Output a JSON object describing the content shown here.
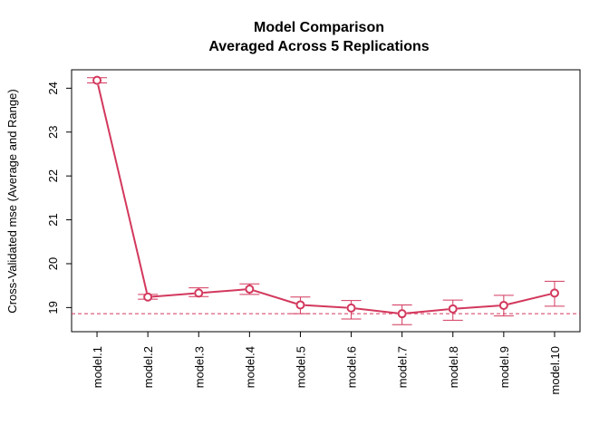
{
  "chart_data": {
    "type": "line",
    "title": "Model Comparison",
    "subtitle": "Averaged Across 5 Replications",
    "xlabel": "",
    "ylabel": "Cross-Validated mse (Average and Range)",
    "categories": [
      "model.1",
      "model.2",
      "model.3",
      "model.4",
      "model.5",
      "model.6",
      "model.7",
      "model.8",
      "model.9",
      "model.10"
    ],
    "series": [
      {
        "values": [
          24.18,
          19.24,
          19.33,
          19.42,
          19.06,
          18.99,
          18.86,
          18.97,
          19.05,
          19.33
        ],
        "low": [
          24.12,
          19.19,
          19.25,
          19.3,
          18.86,
          18.74,
          18.61,
          18.71,
          18.81,
          19.03
        ],
        "high": [
          24.24,
          19.3,
          19.45,
          19.54,
          19.24,
          19.16,
          19.06,
          19.17,
          19.28,
          19.6
        ]
      }
    ],
    "reference_line": 18.86,
    "ylim": [
      18.45,
      24.42
    ],
    "yticks": [
      19,
      20,
      21,
      22,
      23,
      24
    ],
    "grid": false,
    "legend": "none",
    "colors": {
      "series": "#d3385d",
      "reference": "#d3385d",
      "axes": "#000000"
    }
  }
}
